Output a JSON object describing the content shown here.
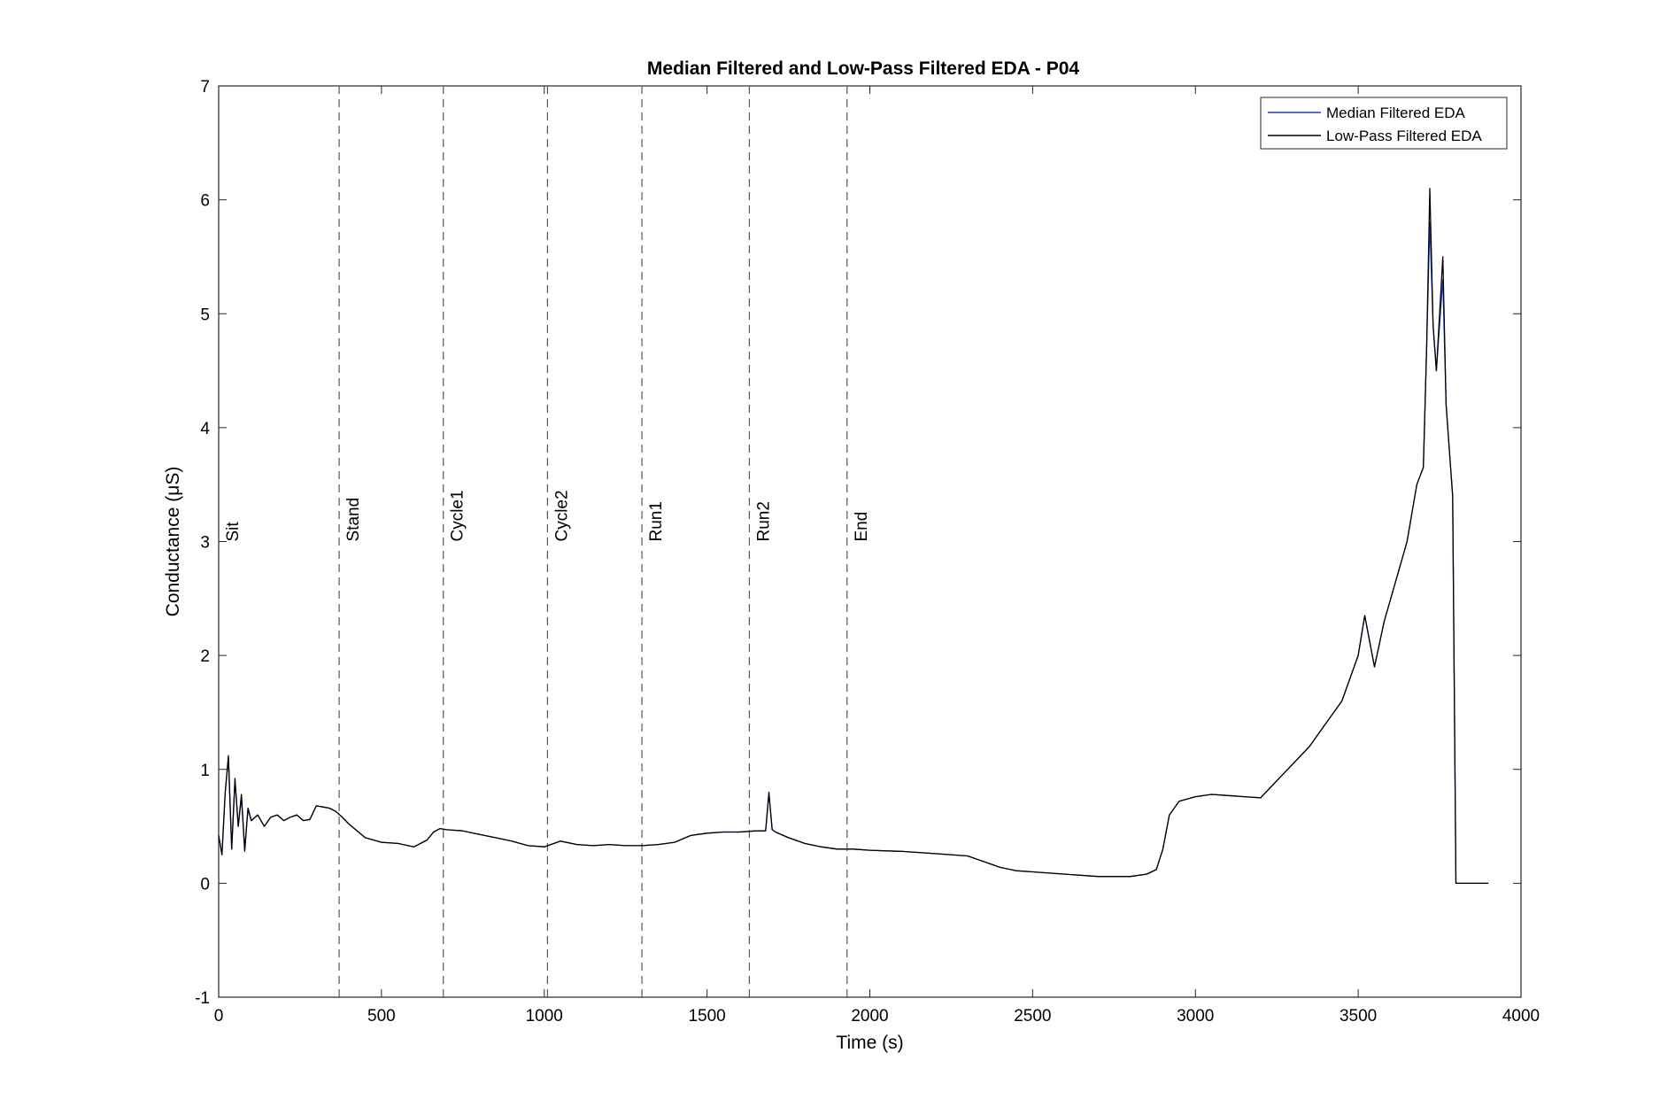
{
  "chart_data": {
    "type": "line",
    "title": "Median Filtered and Low-Pass Filtered EDA - P04",
    "xlabel": "Time (s)",
    "ylabel": "Conductance (μS)",
    "xlim": [
      0,
      4000
    ],
    "ylim": [
      -1,
      7
    ],
    "xticks": [
      0,
      500,
      1000,
      1500,
      2000,
      2500,
      3000,
      3500,
      4000
    ],
    "yticks": [
      -1,
      0,
      1,
      2,
      3,
      4,
      5,
      6,
      7
    ],
    "grid": false,
    "legend_position": "top-right",
    "legend": [
      "Median Filtered EDA",
      "Low-Pass Filtered EDA"
    ],
    "events": [
      {
        "label": "Sit",
        "x": 0
      },
      {
        "label": "Stand",
        "x": 370
      },
      {
        "label": "Cycle1",
        "x": 690
      },
      {
        "label": "Cycle2",
        "x": 1010
      },
      {
        "label": "Run1",
        "x": 1300
      },
      {
        "label": "Run2",
        "x": 1630
      },
      {
        "label": "End",
        "x": 1930
      }
    ],
    "event_label_y": 3,
    "series": [
      {
        "name": "Median Filtered EDA",
        "color": "#1f3fbf",
        "x": [
          0,
          10,
          20,
          30,
          40,
          50,
          60,
          70,
          80,
          90,
          100,
          120,
          140,
          160,
          180,
          200,
          220,
          240,
          260,
          280,
          300,
          320,
          340,
          360,
          380,
          400,
          450,
          500,
          550,
          600,
          640,
          660,
          680,
          700,
          750,
          800,
          850,
          900,
          950,
          1000,
          1050,
          1100,
          1150,
          1200,
          1250,
          1300,
          1350,
          1400,
          1450,
          1500,
          1550,
          1600,
          1650,
          1680,
          1690,
          1700,
          1710,
          1750,
          1800,
          1850,
          1900,
          1950,
          2000,
          2100,
          2200,
          2300,
          2350,
          2400,
          2450,
          2500,
          2600,
          2700,
          2800,
          2850,
          2880,
          2900,
          2920,
          2950,
          3000,
          3050,
          3100,
          3150,
          3200,
          3250,
          3300,
          3350,
          3400,
          3450,
          3500,
          3520,
          3550,
          3580,
          3600,
          3650,
          3680,
          3700,
          3710,
          3720,
          3730,
          3740,
          3760,
          3770,
          3780,
          3790,
          3800,
          3805,
          3810,
          3850,
          3900
        ],
        "y": [
          0.42,
          0.25,
          0.8,
          1.1,
          0.3,
          0.9,
          0.5,
          0.75,
          0.3,
          0.65,
          0.55,
          0.6,
          0.5,
          0.58,
          0.6,
          0.55,
          0.58,
          0.6,
          0.55,
          0.56,
          0.68,
          0.67,
          0.66,
          0.63,
          0.58,
          0.52,
          0.4,
          0.36,
          0.35,
          0.32,
          0.38,
          0.45,
          0.48,
          0.47,
          0.46,
          0.43,
          0.4,
          0.37,
          0.33,
          0.32,
          0.37,
          0.34,
          0.33,
          0.34,
          0.33,
          0.33,
          0.34,
          0.36,
          0.42,
          0.44,
          0.45,
          0.45,
          0.46,
          0.46,
          0.78,
          0.47,
          0.45,
          0.4,
          0.35,
          0.32,
          0.3,
          0.3,
          0.29,
          0.28,
          0.26,
          0.24,
          0.19,
          0.14,
          0.11,
          0.1,
          0.08,
          0.06,
          0.06,
          0.08,
          0.12,
          0.3,
          0.6,
          0.72,
          0.76,
          0.78,
          0.77,
          0.76,
          0.75,
          0.9,
          1.05,
          1.2,
          1.4,
          1.6,
          2.0,
          2.35,
          1.9,
          2.3,
          2.5,
          3.0,
          3.5,
          3.65,
          4.7,
          5.8,
          4.9,
          4.5,
          5.3,
          4.2,
          3.8,
          3.4,
          0.0,
          0.0,
          0.0,
          0.0,
          0.0
        ]
      },
      {
        "name": "Low-Pass Filtered EDA",
        "color": "#000000",
        "x": [
          0,
          10,
          20,
          30,
          40,
          50,
          60,
          70,
          80,
          90,
          100,
          120,
          140,
          160,
          180,
          200,
          220,
          240,
          260,
          280,
          300,
          320,
          340,
          360,
          380,
          400,
          450,
          500,
          550,
          600,
          640,
          660,
          680,
          700,
          750,
          800,
          850,
          900,
          950,
          1000,
          1050,
          1100,
          1150,
          1200,
          1250,
          1300,
          1350,
          1400,
          1450,
          1500,
          1550,
          1600,
          1650,
          1680,
          1690,
          1700,
          1710,
          1750,
          1800,
          1850,
          1900,
          1950,
          2000,
          2100,
          2200,
          2300,
          2350,
          2400,
          2450,
          2500,
          2600,
          2700,
          2800,
          2850,
          2880,
          2900,
          2920,
          2950,
          3000,
          3050,
          3100,
          3150,
          3200,
          3250,
          3300,
          3350,
          3400,
          3450,
          3500,
          3520,
          3550,
          3580,
          3600,
          3650,
          3680,
          3700,
          3710,
          3720,
          3730,
          3740,
          3760,
          3770,
          3780,
          3790,
          3800,
          3805,
          3810,
          3850,
          3900
        ],
        "y": [
          0.42,
          0.25,
          0.8,
          1.12,
          0.3,
          0.92,
          0.5,
          0.78,
          0.28,
          0.66,
          0.55,
          0.6,
          0.5,
          0.58,
          0.6,
          0.55,
          0.58,
          0.6,
          0.55,
          0.56,
          0.68,
          0.67,
          0.66,
          0.63,
          0.58,
          0.52,
          0.4,
          0.36,
          0.35,
          0.32,
          0.38,
          0.45,
          0.48,
          0.47,
          0.46,
          0.43,
          0.4,
          0.37,
          0.33,
          0.32,
          0.37,
          0.34,
          0.33,
          0.34,
          0.33,
          0.33,
          0.34,
          0.36,
          0.42,
          0.44,
          0.45,
          0.45,
          0.46,
          0.46,
          0.8,
          0.47,
          0.45,
          0.4,
          0.35,
          0.32,
          0.3,
          0.3,
          0.29,
          0.28,
          0.26,
          0.24,
          0.19,
          0.14,
          0.11,
          0.1,
          0.08,
          0.06,
          0.06,
          0.08,
          0.12,
          0.3,
          0.6,
          0.72,
          0.76,
          0.78,
          0.77,
          0.76,
          0.75,
          0.9,
          1.05,
          1.2,
          1.4,
          1.6,
          2.0,
          2.35,
          1.9,
          2.3,
          2.5,
          3.0,
          3.5,
          3.65,
          4.7,
          6.1,
          4.9,
          4.5,
          5.5,
          4.2,
          3.8,
          3.4,
          0.0,
          0.0,
          0.0,
          0.0,
          0.0
        ]
      }
    ]
  }
}
